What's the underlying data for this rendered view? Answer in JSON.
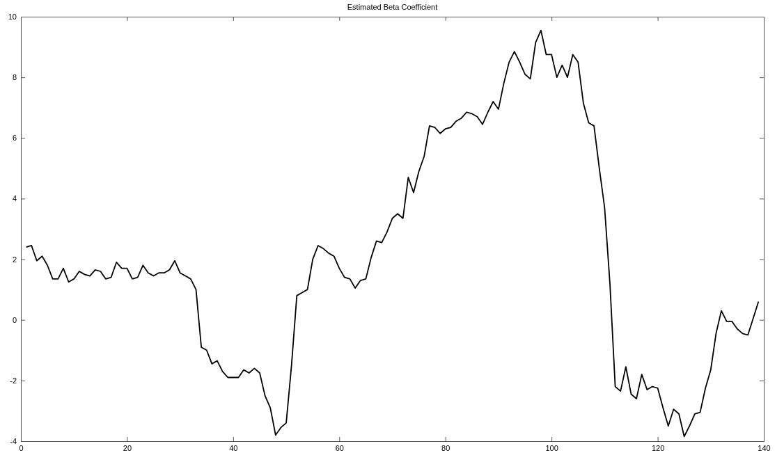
{
  "chart_data": {
    "type": "line",
    "title": "Estimated Beta Coefficient",
    "x": [
      1,
      2,
      3,
      4,
      5,
      6,
      7,
      8,
      9,
      10,
      11,
      12,
      13,
      14,
      15,
      16,
      17,
      18,
      19,
      20,
      21,
      22,
      23,
      24,
      25,
      26,
      27,
      28,
      29,
      30,
      31,
      32,
      33,
      34,
      35,
      36,
      37,
      38,
      39,
      40,
      41,
      42,
      43,
      44,
      45,
      46,
      47,
      48,
      49,
      50,
      51,
      52,
      53,
      54,
      55,
      56,
      57,
      58,
      59,
      60,
      61,
      62,
      63,
      64,
      65,
      66,
      67,
      68,
      69,
      70,
      71,
      72,
      73,
      74,
      75,
      76,
      77,
      78,
      79,
      80,
      81,
      82,
      83,
      84,
      85,
      86,
      87,
      88,
      89,
      90,
      91,
      92,
      93,
      94,
      95,
      96,
      97,
      98,
      99,
      100,
      101,
      102,
      103,
      104,
      105,
      106,
      107,
      108,
      109,
      110,
      111,
      112,
      113,
      114,
      115,
      116,
      117,
      118,
      119,
      120,
      121,
      122,
      123,
      124,
      125,
      126,
      127,
      128,
      129,
      130,
      131,
      132,
      133,
      134,
      135,
      136,
      137,
      138,
      139
    ],
    "series": [
      {
        "color": "#000000",
        "values": [
          2.4,
          2.45,
          1.95,
          2.1,
          1.8,
          1.35,
          1.35,
          1.7,
          1.25,
          1.35,
          1.6,
          1.5,
          1.45,
          1.65,
          1.6,
          1.35,
          1.4,
          1.9,
          1.7,
          1.7,
          1.35,
          1.4,
          1.8,
          1.55,
          1.45,
          1.55,
          1.55,
          1.65,
          1.95,
          1.55,
          1.45,
          1.35,
          1.0,
          -0.9,
          -1.0,
          -1.45,
          -1.35,
          -1.7,
          -1.9,
          -1.9,
          -1.9,
          -1.65,
          -1.75,
          -1.6,
          -1.75,
          -2.5,
          -2.9,
          -3.8,
          -3.55,
          -3.4,
          -1.5,
          0.8,
          0.9,
          1.0,
          2.0,
          2.45,
          2.35,
          2.2,
          2.1,
          1.7,
          1.4,
          1.35,
          1.05,
          1.3,
          1.35,
          2.05,
          2.6,
          2.55,
          2.9,
          3.35,
          3.5,
          3.35,
          4.7,
          4.2,
          4.9,
          5.4,
          6.4,
          6.35,
          6.15,
          6.3,
          6.35,
          6.55,
          6.65,
          6.85,
          6.8,
          6.7,
          6.45,
          6.85,
          7.2,
          6.95,
          7.8,
          8.5,
          8.85,
          8.5,
          8.1,
          7.95,
          9.15,
          9.55,
          8.75,
          8.75,
          8.0,
          8.4,
          8.0,
          8.75,
          8.5,
          7.15,
          6.5,
          6.4,
          5.0,
          3.7,
          1.2,
          -2.2,
          -2.35,
          -1.55,
          -2.45,
          -2.6,
          -1.8,
          -2.3,
          -2.2,
          -2.25,
          -2.9,
          -3.5,
          -2.95,
          -3.1,
          -3.85,
          -3.5,
          -3.1,
          -3.05,
          -2.25,
          -1.65,
          -0.45,
          0.3,
          -0.05,
          -0.05,
          -0.3,
          -0.45,
          -0.5,
          0.05,
          0.6
        ]
      }
    ],
    "xlim": [
      0,
      140
    ],
    "xticks": [
      0,
      20,
      40,
      60,
      80,
      100,
      120,
      140
    ],
    "ylim": [
      -4,
      10
    ],
    "yticks": [
      -4,
      -2,
      0,
      2,
      4,
      6,
      8,
      10
    ],
    "grid": false,
    "marker": "none",
    "line_style": "solid"
  }
}
